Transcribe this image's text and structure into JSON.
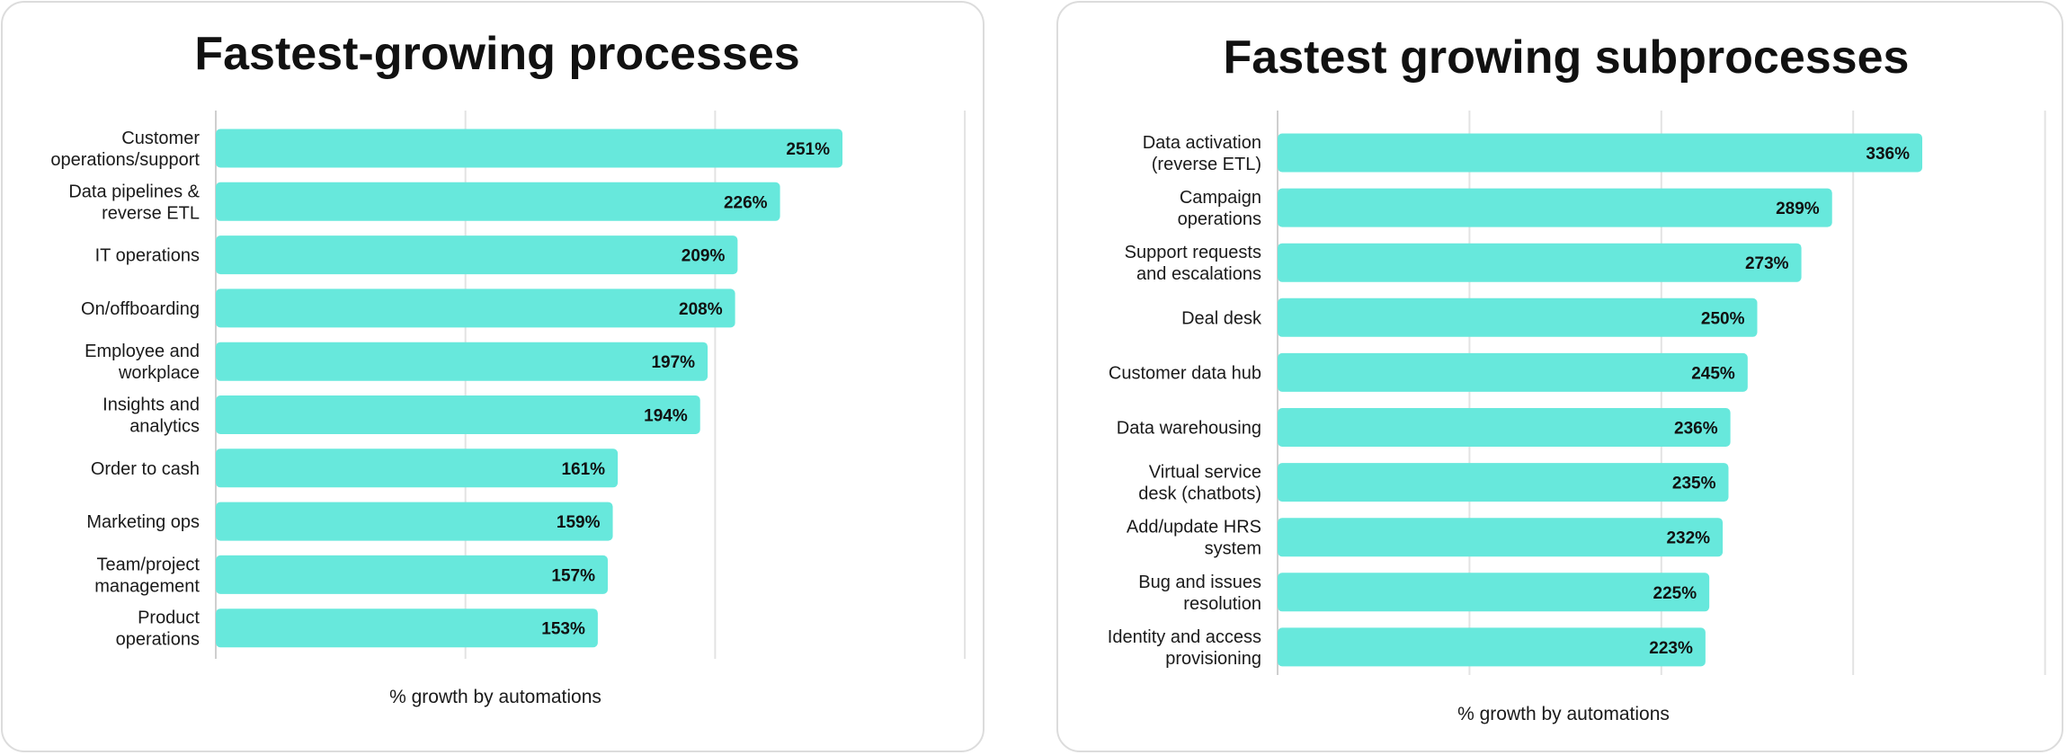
{
  "chart_data": [
    {
      "type": "bar",
      "orientation": "horizontal",
      "title": "Fastest-growing processes",
      "xlabel": "% growth by automations",
      "ylabel": "",
      "xlim": [
        0,
        300
      ],
      "grid": true,
      "bar_color": "#67E8DC",
      "categories": [
        [
          "Customer",
          "operations/support"
        ],
        [
          "Data pipelines &",
          "reverse ETL"
        ],
        [
          "IT operations"
        ],
        [
          "On/offboarding"
        ],
        [
          "Employee and",
          "workplace"
        ],
        [
          "Insights and",
          "analytics"
        ],
        [
          "Order to cash"
        ],
        [
          "Marketing ops"
        ],
        [
          "Team/project",
          "management"
        ],
        [
          "Product",
          "operations"
        ]
      ],
      "values": [
        251,
        226,
        209,
        208,
        197,
        194,
        161,
        159,
        157,
        153
      ],
      "value_labels": [
        "251%",
        "226%",
        "209%",
        "208%",
        "197%",
        "194%",
        "161%",
        "159%",
        "157%",
        "153%"
      ]
    },
    {
      "type": "bar",
      "orientation": "horizontal",
      "title": "Fastest growing subprocesses",
      "xlabel": "% growth by automations",
      "ylabel": "",
      "xlim": [
        0,
        400
      ],
      "grid": true,
      "bar_color": "#67E8DC",
      "categories": [
        [
          "Data activation",
          "(reverse ETL)"
        ],
        [
          "Campaign",
          "operations"
        ],
        [
          "Support requests",
          "and escalations"
        ],
        [
          "Deal desk"
        ],
        [
          "Customer data hub"
        ],
        [
          "Data warehousing"
        ],
        [
          "Virtual service",
          "desk (chatbots)"
        ],
        [
          "Add/update HRS",
          "system"
        ],
        [
          "Bug and issues",
          "resolution"
        ],
        [
          "Identity and access",
          "provisioning"
        ]
      ],
      "values": [
        336,
        289,
        273,
        250,
        245,
        236,
        235,
        232,
        225,
        223
      ],
      "value_labels": [
        "336%",
        "289%",
        "273%",
        "250%",
        "245%",
        "236%",
        "235%",
        "232%",
        "225%",
        "223%"
      ]
    }
  ]
}
